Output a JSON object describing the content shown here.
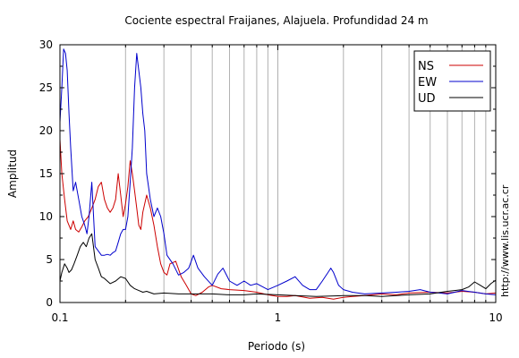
{
  "chart_data": {
    "type": "line",
    "title": "Cociente espectral Fraijanes, Alajuela. Profundidad 24 m",
    "xlabel": "Periodo (s)",
    "ylabel": "Amplitud",
    "xscale": "log",
    "xlim": [
      0.1,
      10
    ],
    "ylim": [
      0,
      30
    ],
    "xticks": [
      "0.1",
      "1",
      "10"
    ],
    "yticks": [
      "0",
      "5",
      "10",
      "15",
      "20",
      "25",
      "30"
    ],
    "grid": "vertical-log",
    "legend_position": "top-right",
    "watermark": "http://www.lis.ucr.ac.cr",
    "series": [
      {
        "name": "NS",
        "color": "#cc0000",
        "x": [
          0.1,
          0.102,
          0.105,
          0.108,
          0.112,
          0.115,
          0.118,
          0.122,
          0.126,
          0.13,
          0.135,
          0.14,
          0.145,
          0.15,
          0.155,
          0.16,
          0.165,
          0.17,
          0.175,
          0.18,
          0.185,
          0.19,
          0.195,
          0.2,
          0.205,
          0.21,
          0.215,
          0.22,
          0.225,
          0.23,
          0.235,
          0.24,
          0.25,
          0.26,
          0.27,
          0.28,
          0.29,
          0.3,
          0.31,
          0.32,
          0.34,
          0.36,
          0.38,
          0.4,
          0.42,
          0.45,
          0.48,
          0.5,
          0.55,
          0.6,
          0.7,
          0.8,
          0.9,
          1.0,
          1.1,
          1.2,
          1.4,
          1.6,
          1.8,
          2.0,
          2.2,
          2.5,
          3.0,
          3.5,
          4.0,
          5.0,
          6.0,
          7.0,
          8.0,
          9.0,
          10.0
        ],
        "y": [
          19,
          15,
          12,
          9.5,
          8.5,
          9.5,
          8.5,
          8.2,
          8.8,
          9.5,
          10,
          11,
          12,
          13.5,
          14,
          12,
          11,
          10.5,
          11,
          12,
          15,
          12.5,
          10,
          11.5,
          13.5,
          16.5,
          15,
          13,
          11,
          9,
          8.5,
          10.5,
          12.5,
          11,
          9,
          6.5,
          4.5,
          3.5,
          3.2,
          4.5,
          4.8,
          3,
          2,
          1,
          0.8,
          1.2,
          1.8,
          2,
          1.6,
          1.5,
          1.4,
          1.2,
          0.9,
          0.7,
          0.7,
          0.8,
          0.5,
          0.6,
          0.4,
          0.6,
          0.7,
          0.8,
          1,
          0.9,
          1.1,
          1.2,
          1.1,
          1.3,
          1.2,
          1.0,
          1.1
        ]
      },
      {
        "name": "EW",
        "color": "#0000cc",
        "x": [
          0.1,
          0.102,
          0.104,
          0.106,
          0.108,
          0.11,
          0.112,
          0.115,
          0.118,
          0.122,
          0.126,
          0.13,
          0.133,
          0.136,
          0.14,
          0.145,
          0.15,
          0.155,
          0.16,
          0.165,
          0.17,
          0.175,
          0.18,
          0.185,
          0.19,
          0.195,
          0.2,
          0.205,
          0.21,
          0.215,
          0.22,
          0.225,
          0.23,
          0.235,
          0.24,
          0.245,
          0.25,
          0.26,
          0.27,
          0.28,
          0.29,
          0.3,
          0.31,
          0.33,
          0.35,
          0.37,
          0.39,
          0.41,
          0.43,
          0.46,
          0.5,
          0.53,
          0.56,
          0.6,
          0.65,
          0.7,
          0.75,
          0.8,
          0.9,
          1.0,
          1.1,
          1.2,
          1.3,
          1.4,
          1.5,
          1.6,
          1.7,
          1.75,
          1.8,
          1.9,
          2.0,
          2.2,
          2.5,
          3.0,
          3.5,
          4.0,
          4.5,
          5.0,
          5.5,
          6.0,
          7.0,
          8.0,
          9.0,
          10.0
        ],
        "y": [
          21,
          25,
          29.5,
          29,
          27,
          22,
          18,
          13,
          14,
          12,
          10,
          9,
          8,
          10,
          14,
          6.5,
          6,
          5.5,
          5.5,
          5.6,
          5.5,
          5.8,
          6,
          7,
          8,
          8.5,
          8.5,
          10,
          14,
          18,
          25,
          29,
          27,
          25,
          22,
          20,
          15,
          12,
          10,
          11,
          10,
          8,
          5.5,
          4.5,
          3.2,
          3.5,
          4,
          5.5,
          4,
          3,
          2,
          3.3,
          4,
          2.5,
          2,
          2.5,
          2,
          2.2,
          1.5,
          2,
          2.5,
          3,
          2,
          1.5,
          1.5,
          2.5,
          3.5,
          4,
          3.5,
          2,
          1.5,
          1.2,
          1,
          1.1,
          1.2,
          1.3,
          1.5,
          1.2,
          1.1,
          1.0,
          1.4,
          1.2,
          1.0,
          0.9
        ]
      },
      {
        "name": "UD",
        "color": "#000000",
        "x": [
          0.1,
          0.102,
          0.105,
          0.108,
          0.11,
          0.113,
          0.116,
          0.12,
          0.124,
          0.128,
          0.132,
          0.136,
          0.14,
          0.145,
          0.15,
          0.155,
          0.16,
          0.17,
          0.18,
          0.19,
          0.2,
          0.21,
          0.22,
          0.23,
          0.24,
          0.25,
          0.27,
          0.3,
          0.35,
          0.4,
          0.5,
          0.6,
          0.7,
          0.8,
          1.0,
          1.2,
          1.5,
          2.0,
          2.5,
          3.0,
          3.5,
          4.0,
          5.0,
          6.0,
          7.0,
          7.5,
          8.0,
          8.5,
          9.0,
          9.5,
          10.0
        ],
        "y": [
          2.5,
          3.5,
          4.5,
          4,
          3.5,
          3.8,
          4.5,
          5.5,
          6.5,
          7,
          6.5,
          7.5,
          8,
          5,
          4,
          3,
          2.8,
          2.2,
          2.5,
          3,
          2.8,
          2,
          1.6,
          1.4,
          1.2,
          1.3,
          1.0,
          1.1,
          1.0,
          1.0,
          1.0,
          0.9,
          0.9,
          1.0,
          0.9,
          0.8,
          0.7,
          0.8,
          0.8,
          0.7,
          0.8,
          0.9,
          1.0,
          1.3,
          1.5,
          1.8,
          2.4,
          2.0,
          1.6,
          2.2,
          2.6
        ]
      }
    ]
  }
}
